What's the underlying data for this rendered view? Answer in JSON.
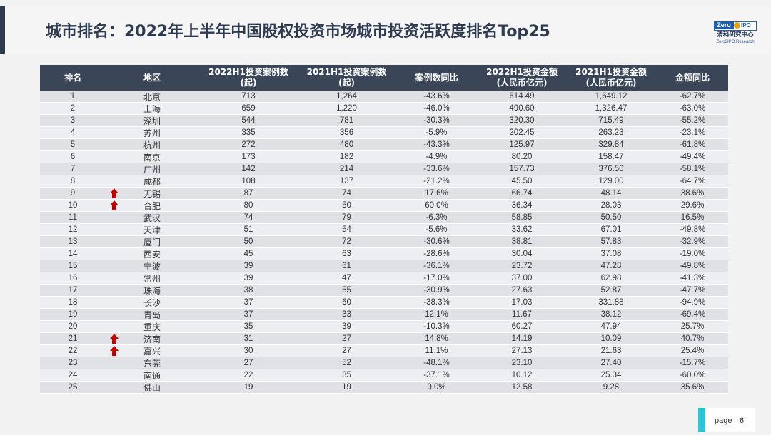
{
  "title": "城市排名：2022年上半年中国股权投资市场城市投资活跃度排名Top25",
  "logo": {
    "zero": "Zero",
    "ipo": "IPO",
    "cn": "清科研究中心",
    "en": "Zero2IPO Research"
  },
  "table": {
    "headers": [
      {
        "l1": "排名",
        "l2": ""
      },
      {
        "l1": "地区",
        "l2": ""
      },
      {
        "l1": "2022H1投资案例数",
        "l2": "(起)"
      },
      {
        "l1": "2021H1投资案例数",
        "l2": "(起)"
      },
      {
        "l1": "案例数同比",
        "l2": ""
      },
      {
        "l1": "2022H1投资金额",
        "l2": "(人民币亿元)"
      },
      {
        "l1": "2021H1投资金额",
        "l2": "(人民币亿元)"
      },
      {
        "l1": "金额同比",
        "l2": ""
      }
    ],
    "rows": [
      {
        "rank": "1",
        "city": "北京",
        "c22": "713",
        "c21": "1,264",
        "cy": "-43.6%",
        "a22": "614.49",
        "a21": "1,649.12",
        "ay": "-62.7%",
        "up": false
      },
      {
        "rank": "2",
        "city": "上海",
        "c22": "659",
        "c21": "1,220",
        "cy": "-46.0%",
        "a22": "490.60",
        "a21": "1,326.47",
        "ay": "-63.0%",
        "up": false
      },
      {
        "rank": "3",
        "city": "深圳",
        "c22": "544",
        "c21": "781",
        "cy": "-30.3%",
        "a22": "320.30",
        "a21": "715.49",
        "ay": "-55.2%",
        "up": false
      },
      {
        "rank": "4",
        "city": "苏州",
        "c22": "335",
        "c21": "356",
        "cy": "-5.9%",
        "a22": "202.45",
        "a21": "263.23",
        "ay": "-23.1%",
        "up": false
      },
      {
        "rank": "5",
        "city": "杭州",
        "c22": "272",
        "c21": "480",
        "cy": "-43.3%",
        "a22": "125.97",
        "a21": "329.84",
        "ay": "-61.8%",
        "up": false
      },
      {
        "rank": "6",
        "city": "南京",
        "c22": "173",
        "c21": "182",
        "cy": "-4.9%",
        "a22": "80.20",
        "a21": "158.47",
        "ay": "-49.4%",
        "up": false
      },
      {
        "rank": "7",
        "city": "广州",
        "c22": "142",
        "c21": "214",
        "cy": "-33.6%",
        "a22": "157.73",
        "a21": "376.50",
        "ay": "-58.1%",
        "up": false
      },
      {
        "rank": "8",
        "city": "成都",
        "c22": "108",
        "c21": "137",
        "cy": "-21.2%",
        "a22": "45.50",
        "a21": "129.00",
        "ay": "-64.7%",
        "up": false
      },
      {
        "rank": "9",
        "city": "无锡",
        "c22": "87",
        "c21": "74",
        "cy": "17.6%",
        "a22": "66.74",
        "a21": "48.14",
        "ay": "38.6%",
        "up": true
      },
      {
        "rank": "10",
        "city": "合肥",
        "c22": "80",
        "c21": "50",
        "cy": "60.0%",
        "a22": "36.34",
        "a21": "28.03",
        "ay": "29.6%",
        "up": true
      },
      {
        "rank": "11",
        "city": "武汉",
        "c22": "74",
        "c21": "79",
        "cy": "-6.3%",
        "a22": "58.85",
        "a21": "50.50",
        "ay": "16.5%",
        "up": false
      },
      {
        "rank": "12",
        "city": "天津",
        "c22": "51",
        "c21": "54",
        "cy": "-5.6%",
        "a22": "33.62",
        "a21": "67.01",
        "ay": "-49.8%",
        "up": false
      },
      {
        "rank": "13",
        "city": "厦门",
        "c22": "50",
        "c21": "72",
        "cy": "-30.6%",
        "a22": "38.81",
        "a21": "57.83",
        "ay": "-32.9%",
        "up": false
      },
      {
        "rank": "14",
        "city": "西安",
        "c22": "45",
        "c21": "63",
        "cy": "-28.6%",
        "a22": "30.04",
        "a21": "37.08",
        "ay": "-19.0%",
        "up": false
      },
      {
        "rank": "15",
        "city": "宁波",
        "c22": "39",
        "c21": "61",
        "cy": "-36.1%",
        "a22": "23.72",
        "a21": "47.28",
        "ay": "-49.8%",
        "up": false
      },
      {
        "rank": "16",
        "city": "常州",
        "c22": "39",
        "c21": "47",
        "cy": "-17.0%",
        "a22": "37.00",
        "a21": "62.98",
        "ay": "-41.3%",
        "up": false
      },
      {
        "rank": "17",
        "city": "珠海",
        "c22": "38",
        "c21": "55",
        "cy": "-30.9%",
        "a22": "27.63",
        "a21": "52.87",
        "ay": "-47.7%",
        "up": false
      },
      {
        "rank": "18",
        "city": "长沙",
        "c22": "37",
        "c21": "60",
        "cy": "-38.3%",
        "a22": "17.03",
        "a21": "331.88",
        "ay": "-94.9%",
        "up": false
      },
      {
        "rank": "19",
        "city": "青岛",
        "c22": "37",
        "c21": "33",
        "cy": "12.1%",
        "a22": "11.67",
        "a21": "38.12",
        "ay": "-69.4%",
        "up": false
      },
      {
        "rank": "20",
        "city": "重庆",
        "c22": "35",
        "c21": "39",
        "cy": "-10.3%",
        "a22": "60.27",
        "a21": "47.94",
        "ay": "25.7%",
        "up": false
      },
      {
        "rank": "21",
        "city": "济南",
        "c22": "31",
        "c21": "27",
        "cy": "14.8%",
        "a22": "14.19",
        "a21": "10.09",
        "ay": "40.7%",
        "up": true
      },
      {
        "rank": "22",
        "city": "嘉兴",
        "c22": "30",
        "c21": "27",
        "cy": "11.1%",
        "a22": "27.13",
        "a21": "21.63",
        "ay": "25.4%",
        "up": true
      },
      {
        "rank": "23",
        "city": "东莞",
        "c22": "27",
        "c21": "52",
        "cy": "-48.1%",
        "a22": "23.10",
        "a21": "27.40",
        "ay": "-15.7%",
        "up": false
      },
      {
        "rank": "24",
        "city": "南通",
        "c22": "22",
        "c21": "35",
        "cy": "-37.1%",
        "a22": "10.12",
        "a21": "25.34",
        "ay": "-60.0%",
        "up": false
      },
      {
        "rank": "25",
        "city": "佛山",
        "c22": "19",
        "c21": "19",
        "cy": "0.0%",
        "a22": "12.58",
        "a21": "9.28",
        "ay": "35.6%",
        "up": false
      }
    ]
  },
  "footer": {
    "page_label": "page",
    "page_number": "6"
  },
  "colors": {
    "header_bg": "#3a4558",
    "accent": "#2ec4d4",
    "arrow": "#c00000"
  }
}
